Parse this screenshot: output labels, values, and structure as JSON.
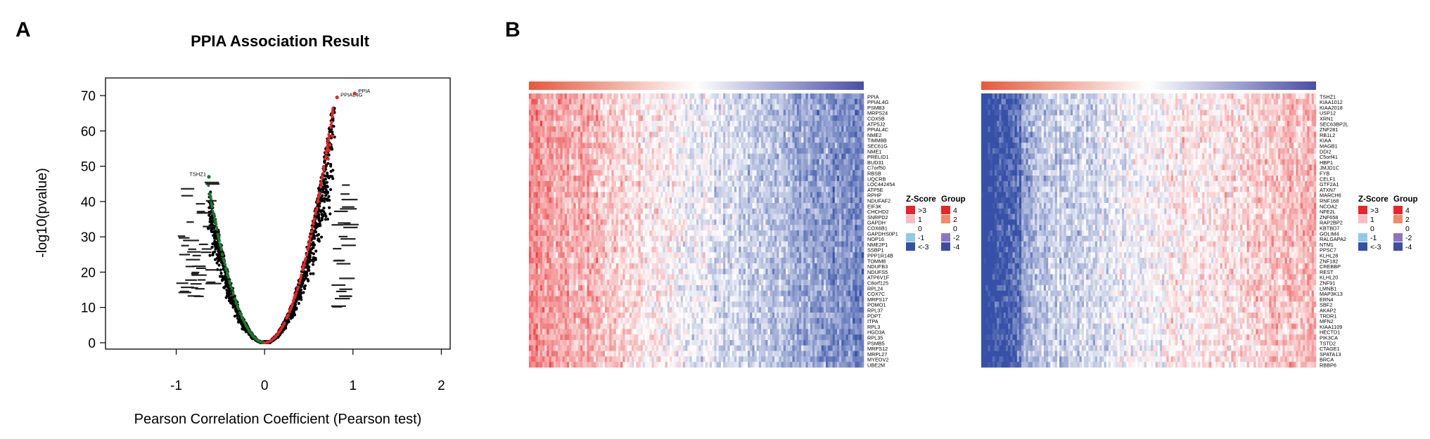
{
  "panels": {
    "a_letter": "A",
    "b_letter": "B"
  },
  "chart_data": [
    {
      "type": "scatter",
      "title": "PPIA Association Result",
      "xlabel": "Pearson Correlation Coefficient (Pearson test)",
      "ylabel": "-log10(pvalue)",
      "xlim": [
        -1.8,
        2.1
      ],
      "ylim": [
        -1.8,
        75
      ],
      "xticks": [
        -1,
        0,
        1,
        2
      ],
      "yticks": [
        0,
        10,
        20,
        30,
        40,
        50,
        60,
        70
      ],
      "grid": false,
      "series": [
        {
          "color": "#000000",
          "note_shape": "volcano",
          "points_desc": "all genes"
        },
        {
          "color": "#1a7a2e",
          "points_desc": "left boundary"
        },
        {
          "color": "#e32626",
          "points_desc": "right boundary"
        }
      ],
      "labeled_points": [
        {
          "label": "PPIAL4G",
          "x": 0.82,
          "y": 69.5
        },
        {
          "label": "PPIA",
          "x": 1.02,
          "y": 70.6
        },
        {
          "label": "TSHZ1",
          "x": -0.63,
          "y": 47.0
        }
      ]
    },
    {
      "type": "heatmap",
      "legend": {
        "zscore_title": "Z-Score",
        "zscore_labels": [
          ">3",
          "1",
          "0",
          "-1",
          "<-3"
        ],
        "zscore_colors": [
          "#e8262a",
          "#f6bdc6",
          "#ffffff",
          "#8fcbe8",
          "#3650a7"
        ],
        "group_title": "Group",
        "group_labels": [
          "4",
          "2",
          "0",
          "-2",
          "-4"
        ],
        "group_colors": [
          "#e8262a",
          "#ef8a6a",
          "#ffffff",
          "#8e76bf",
          "#3d4ea3"
        ]
      },
      "row_labels_left": [
        "PPIA",
        "PPIAL4G",
        "PSMB3",
        "MRPS24",
        "COX5B",
        "ATP5J2",
        "PPIAL4C",
        "NME2",
        "TIMM8B",
        "SEC61G",
        "NME1",
        "PRELID1",
        "BUD31",
        "C7orf50",
        "RBSB",
        "UQCRB",
        "LOC442454",
        "ATP5E",
        "RPHP",
        "NDUFAF2",
        "EIF3K",
        "CHCHD2",
        "SNRPD2",
        "GAPDH",
        "COX6B1",
        "GAPDHS0P1",
        "NOP16",
        "NME2P1",
        "SSBP1",
        "PPP1R14B",
        "TOMM8",
        "NDUFB3",
        "NDUFS5",
        "ATP6V1F",
        "C8orf125",
        "RPL24",
        "COX7C",
        "MRPS17",
        "POMO1",
        "RPL37",
        "PDPT",
        "ITPA",
        "RPL3",
        "HGD3A",
        "RPL35",
        "PSMB5",
        "MRPS12",
        "MRPL27",
        "MYEOV2",
        "UBE2M"
      ],
      "row_labels_right": [
        "TSHZ1",
        "KIAA1012",
        "KIAA2018",
        "USP12",
        "XRN1",
        "SEC63BP2L",
        "ZNF281",
        "RB1L2",
        "KIAA",
        "MAGB1",
        "DDI2",
        "C5orf41",
        "HBP1",
        "JMJD1C",
        "FYB",
        "CELF1",
        "GTF2A1",
        "ATXN7",
        "MARCH6",
        "RNF168",
        "NCOA2",
        "NFE2L",
        "ZNF658",
        "RAP2BP2",
        "KBTBD7",
        "GOLIM4",
        "RALGAPA2",
        "NTM1",
        "PPSC7",
        "KLHL28",
        "ZNF182",
        "CREBBP",
        "REST",
        "KLHL20",
        "ZNF91",
        "LMNB1",
        "MAP3K13",
        "ERN4",
        "SBF2",
        "AKAP2",
        "TRDR1",
        "MFN2",
        "KIAA1109",
        "HECTD1",
        "PIK3CA",
        "TSTD2",
        "CTAGE1",
        "SPATA13",
        "BRCA",
        "RBBP6"
      ]
    }
  ]
}
